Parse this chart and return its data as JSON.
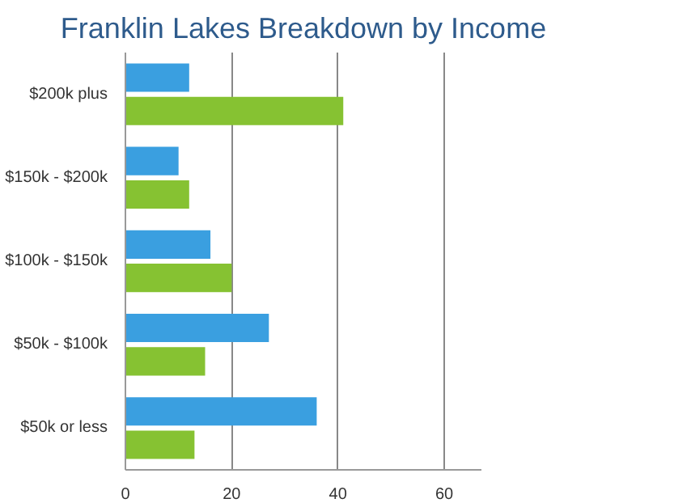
{
  "chart_data": {
    "type": "bar",
    "orientation": "horizontal",
    "title": "Franklin Lakes Breakdown by Income",
    "categories": [
      "$200k plus",
      "$150k - $200k",
      "$100k - $150k",
      "$50k - $100k",
      "$50k or less"
    ],
    "series": [
      {
        "color": "#3a9fe0",
        "values": [
          12,
          10,
          16,
          27,
          36
        ]
      },
      {
        "color": "#86c232",
        "values": [
          41,
          12,
          20,
          15,
          13
        ]
      }
    ],
    "xlim": [
      0,
      67
    ],
    "xticks": [
      0,
      20,
      40,
      60
    ],
    "grid": "x"
  }
}
